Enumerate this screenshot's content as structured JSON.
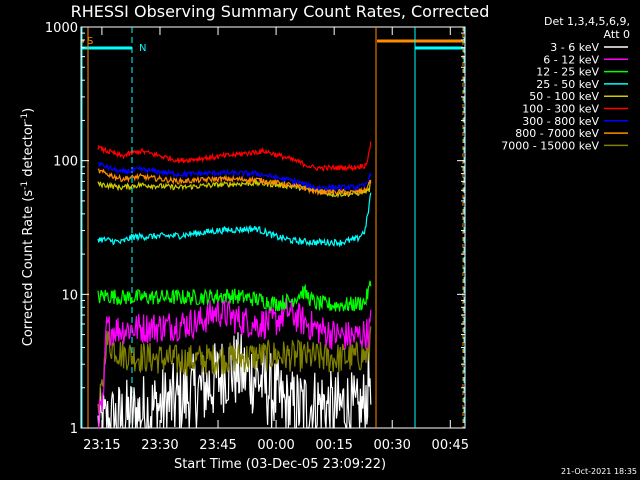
{
  "chart_data": {
    "type": "line",
    "title": "RHESSI Observing Summary Count Rates, Corrected",
    "xlabel": "Start Time (03-Dec-05 23:09:22)",
    "ylabel_main": "Corrected Count Rate (s",
    "ylabel_sup1": "-1",
    "ylabel_mid": " detector",
    "ylabel_sup2": "-1",
    "ylabel_end": ")",
    "yscale": "log",
    "ylim": [
      1,
      1000
    ],
    "xlim_min": [
      -5.4,
      93.8
    ],
    "ytick_labels": [
      "1",
      "10",
      "100",
      "1000"
    ],
    "ytick_values": [
      1,
      10,
      100,
      1000
    ],
    "xtick_labels": [
      "23:15",
      "23:30",
      "23:45",
      "00:00",
      "00:15",
      "00:30",
      "00:45"
    ],
    "xtick_values": [
      0,
      15,
      30,
      45,
      60,
      75,
      90
    ],
    "legend_header": [
      "Det 1,3,4,5,6,9,",
      "Att 0"
    ],
    "legend_position": "right",
    "timestamp": "21-Oct-2021 18:35",
    "flags": [
      {
        "label": "S",
        "color": "#ff8c00"
      },
      {
        "label": "N",
        "color": "#00ffff"
      }
    ],
    "series": [
      {
        "name": "3 - 6 keV",
        "color": "#ffffff",
        "noise": 0.3,
        "x": [
          -1,
          10,
          20,
          28,
          33,
          40,
          48,
          57,
          60,
          63,
          66,
          68,
          69.5
        ],
        "y": [
          1,
          1.3,
          1.6,
          2.1,
          2.8,
          2.4,
          1.4,
          1.5,
          1.3,
          1.5,
          1.2,
          1.5,
          2.8
        ]
      },
      {
        "name": "6 - 12 keV",
        "color": "#ff00ff",
        "noise": 0.12,
        "x": [
          -1,
          0.5,
          1,
          5,
          15,
          25,
          30,
          35,
          40,
          45,
          48,
          50,
          55,
          60,
          65,
          69,
          69.5
        ],
        "y": [
          1.2,
          1.5,
          5.5,
          5.5,
          5.7,
          6.2,
          7.5,
          6.5,
          6,
          6.3,
          7.5,
          6.8,
          5.6,
          5,
          4.8,
          5.2,
          6.5
        ]
      },
      {
        "name": "12 - 25 keV",
        "color": "#00ff00",
        "noise": 0.06,
        "x": [
          -1,
          1,
          5,
          15,
          25,
          33,
          40,
          45,
          49,
          52,
          55,
          60,
          65,
          68,
          69.5
        ],
        "y": [
          9.5,
          9.8,
          9.5,
          9.5,
          9.5,
          9.8,
          9.2,
          8.5,
          9,
          10.5,
          8.6,
          8.3,
          8.4,
          8.8,
          12
        ]
      },
      {
        "name": "25 - 50 keV",
        "color": "#00ffff",
        "noise": 0.025,
        "x": [
          -1,
          5,
          8,
          10,
          20,
          30,
          40,
          45,
          50,
          55,
          62,
          66,
          68,
          69,
          69.5
        ],
        "y": [
          26,
          24.5,
          27,
          27,
          27.5,
          30,
          31,
          27,
          25,
          24.5,
          24.5,
          26,
          30,
          45,
          60
        ]
      },
      {
        "name": "50 - 100 keV",
        "color": "#cccc00",
        "noise": 0.02,
        "x": [
          -1,
          5,
          10,
          20,
          30,
          40,
          50,
          60,
          66,
          69,
          69.5
        ],
        "y": [
          67,
          63,
          66,
          63,
          66,
          68,
          64,
          56,
          57,
          60,
          68
        ]
      },
      {
        "name": "100 - 300 keV",
        "color": "#ff0000",
        "noise": 0.02,
        "x": [
          -1,
          5,
          10,
          20,
          30,
          42,
          50,
          55,
          65,
          68,
          69,
          69.5
        ],
        "y": [
          125,
          108,
          118,
          100,
          107,
          118,
          100,
          88,
          89,
          92,
          110,
          145
        ]
      },
      {
        "name": "300 - 800 keV",
        "color": "#0000ff",
        "noise": 0.02,
        "x": [
          -1,
          5,
          10,
          20,
          30,
          40,
          50,
          55,
          65,
          68,
          69.5
        ],
        "y": [
          95,
          82,
          86,
          79,
          81,
          80,
          70,
          63,
          63,
          65,
          80
        ]
      },
      {
        "name": "800 - 7000 keV",
        "color": "#ff8c00",
        "noise": 0.02,
        "x": [
          -1,
          5,
          10,
          20,
          30,
          40,
          50,
          55,
          65,
          68,
          69.5
        ],
        "y": [
          84,
          73,
          76,
          70,
          73,
          72,
          65,
          59,
          58,
          60,
          72
        ]
      },
      {
        "name": "7000 - 15000 keV",
        "color": "#808000",
        "noise": 0.12,
        "x": [
          -1,
          0.5,
          1,
          5,
          10,
          20,
          30,
          45,
          55,
          60,
          65,
          69,
          69.5
        ],
        "y": [
          1.2,
          2.5,
          4.5,
          3.6,
          3.4,
          3.2,
          3.3,
          3.5,
          3.4,
          3.3,
          3.4,
          3.5,
          6
        ]
      }
    ]
  }
}
